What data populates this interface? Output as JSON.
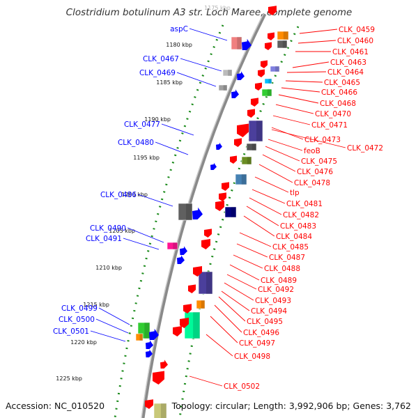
{
  "title": "Clostridium botulinum A3 str. Loch Maree, complete genome",
  "footer": {
    "accession": "Accession: NC_010520",
    "topology": "Topology: circular; Length: 3,992,906 bp; Genes: 3,762"
  },
  "ticks": [
    "1180 kbp",
    "1185 kbp",
    "1190 kbp",
    "1195 kbp",
    "1200 kbp",
    "1205 kbp",
    "1210 kbp",
    "1215 kbp",
    "1220 kbp",
    "1225 kbp"
  ],
  "faded_tick": "1175 kbp",
  "left_labels": [
    "aspC",
    "CLK_0467",
    "CLK_0469",
    "CLK_0477",
    "CLK_0480",
    "CLK_0486",
    "CLK_0490",
    "CLK_0491",
    "CLK_0499",
    "CLK_0500",
    "CLK_0501"
  ],
  "right_labels": [
    "CLK_0459",
    "CLK_0460",
    "CLK_0461",
    "CLK_0463",
    "CLK_0464",
    "CLK_0465",
    "CLK_0466",
    "CLK_0468",
    "CLK_0470",
    "CLK_0471",
    "CLK_0473",
    "CLK_0472",
    "feoB",
    "CLK_0475",
    "CLK_0476",
    "CLK_0478",
    "tlp",
    "CLK_0481",
    "CLK_0482",
    "CLK_0483",
    "CLK_0484",
    "CLK_0485",
    "CLK_0487",
    "CLK_0488",
    "CLK_0489",
    "CLK_0492",
    "CLK_0493",
    "CLK_0494",
    "CLK_0495",
    "CLK_0496",
    "CLK_0497",
    "CLK_0498",
    "CLK_0502"
  ],
  "colors": {
    "forward": "#ff0000",
    "reverse": "#0000ff",
    "backbone": "#888888",
    "ticks": "#008000"
  }
}
